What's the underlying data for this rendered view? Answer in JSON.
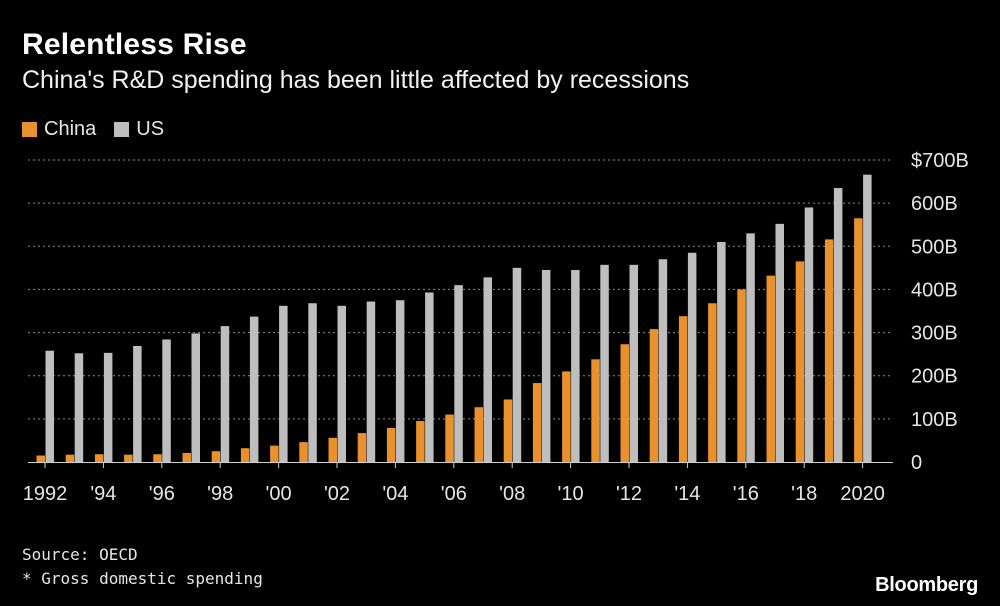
{
  "chart_data": {
    "type": "bar",
    "title": "Relentless Rise",
    "subtitle": "China's R&D spending has been little affected by recessions",
    "categories": [
      "1992",
      "1993",
      "1994",
      "1995",
      "1996",
      "1997",
      "1998",
      "1999",
      "2000",
      "2001",
      "2002",
      "2003",
      "2004",
      "2005",
      "2006",
      "2007",
      "2008",
      "2009",
      "2010",
      "2011",
      "2012",
      "2013",
      "2014",
      "2015",
      "2016",
      "2017",
      "2018",
      "2019",
      "2020"
    ],
    "tick_labels": [
      "1992",
      "'94",
      "'96",
      "'98",
      "'00",
      "'02",
      "'04",
      "'06",
      "'08",
      "'10",
      "'12",
      "'14",
      "'16",
      "'18",
      "2020"
    ],
    "series": [
      {
        "name": "China",
        "color": "#e8912d",
        "values": [
          15,
          17,
          18,
          17,
          18,
          21,
          25,
          32,
          38,
          46,
          56,
          67,
          79,
          95,
          110,
          127,
          145,
          183,
          210,
          238,
          273,
          308,
          338,
          368,
          400,
          432,
          465,
          516,
          565
        ]
      },
      {
        "name": "US",
        "color": "#bebebe",
        "values": [
          258,
          252,
          253,
          269,
          284,
          298,
          315,
          337,
          362,
          368,
          362,
          372,
          375,
          393,
          410,
          428,
          450,
          445,
          445,
          457,
          457,
          470,
          485,
          510,
          530,
          552,
          590,
          635,
          666
        ]
      }
    ],
    "y_ticks": [
      {
        "value": 0,
        "label": "0"
      },
      {
        "value": 100,
        "label": "100B"
      },
      {
        "value": 200,
        "label": "200B"
      },
      {
        "value": 300,
        "label": "300B"
      },
      {
        "value": 400,
        "label": "400B"
      },
      {
        "value": 500,
        "label": "500B"
      },
      {
        "value": 600,
        "label": "600B"
      },
      {
        "value": 700,
        "label": "$700B"
      }
    ],
    "ylim": [
      0,
      700
    ],
    "xlabel": "",
    "ylabel": ""
  },
  "footer": {
    "source": "Source: OECD",
    "note": "* Gross domestic spending",
    "logo": "Bloomberg"
  }
}
